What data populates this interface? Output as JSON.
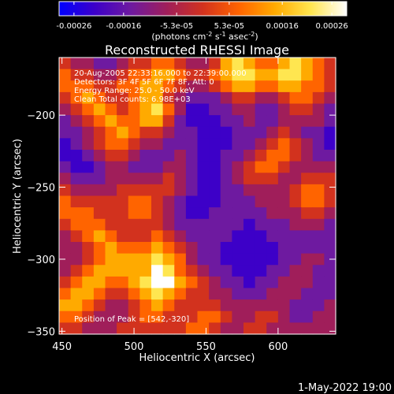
{
  "colorbar": {
    "ticks": [
      {
        "value": -0.00026,
        "label": "-0.00026"
      },
      {
        "value": -0.00016,
        "label": "-0.00016"
      },
      {
        "value": -5.3e-05,
        "label": "-5.3e-05"
      },
      {
        "value": 5.3e-05,
        "label": "5.3e-05"
      },
      {
        "value": 0.00016,
        "label": "0.00016"
      },
      {
        "value": 0.00026,
        "label": "0.00026"
      }
    ],
    "range": [
      -0.00029,
      0.00029
    ],
    "units_prefix": "(photons cm",
    "units_exp1": "-2",
    "units_mid1": " s",
    "units_exp2": "-1",
    "units_mid2": " asec",
    "units_exp3": "-2",
    "units_suffix": ")",
    "colors": [
      "#0000ff",
      "#3d00c8",
      "#6e1aa0",
      "#a01e5a",
      "#d2321e",
      "#ff6400",
      "#ffaa00",
      "#ffe650",
      "#ffffff"
    ]
  },
  "plot": {
    "title": "Reconstructed RHESSI Image",
    "info_lines": [
      "20-Aug-2005 22:33:16.000 to 22:39:00.000",
      "Detectors: 3F 4F 5F 6F 7F 8F, Att: 0",
      "Energy Range: 25.0 - 50.0 keV",
      "Clean     Total counts: 6.98E+03"
    ],
    "peak_label": "Position of Peak = [542,-320]",
    "footer_date": "1-May-2022 19:00"
  },
  "chart_data": {
    "type": "heatmap",
    "title": "Reconstructed RHESSI Image",
    "xlabel": "Heliocentric X (arcsec)",
    "ylabel": "Heliocentric Y (arcsec)",
    "xlim": [
      448,
      640
    ],
    "ylim": [
      -352,
      -160
    ],
    "x_ticks": [
      450,
      500,
      550,
      600
    ],
    "y_ticks": [
      -200,
      -250,
      -300,
      -350
    ],
    "peak": [
      542,
      -320
    ],
    "grid_x_start": 448,
    "grid_y_start": -160,
    "cell_size": 8,
    "grid": [
      [
        4,
        3,
        3,
        2,
        2,
        3,
        4,
        4,
        5,
        5,
        4,
        3,
        3,
        4,
        6,
        7,
        6,
        5,
        5,
        6,
        7,
        6,
        5,
        4
      ],
      [
        5,
        4,
        4,
        3,
        3,
        4,
        5,
        5,
        6,
        6,
        5,
        4,
        4,
        5,
        6,
        7,
        7,
        6,
        6,
        7,
        7,
        6,
        5,
        4
      ],
      [
        5,
        5,
        5,
        4,
        4,
        5,
        5,
        6,
        6,
        5,
        4,
        3,
        3,
        4,
        5,
        6,
        6,
        5,
        5,
        6,
        6,
        5,
        5,
        4
      ],
      [
        4,
        5,
        6,
        5,
        4,
        4,
        5,
        6,
        6,
        4,
        3,
        2,
        2,
        2,
        3,
        4,
        4,
        3,
        3,
        4,
        5,
        5,
        4,
        3
      ],
      [
        3,
        4,
        5,
        6,
        5,
        4,
        5,
        6,
        7,
        5,
        3,
        1,
        1,
        2,
        2,
        3,
        3,
        2,
        2,
        3,
        4,
        4,
        3,
        2
      ],
      [
        2,
        3,
        4,
        5,
        6,
        5,
        5,
        6,
        6,
        4,
        2,
        1,
        1,
        1,
        2,
        2,
        3,
        2,
        2,
        3,
        3,
        3,
        3,
        2
      ],
      [
        2,
        2,
        3,
        4,
        5,
        6,
        5,
        4,
        4,
        3,
        2,
        2,
        1,
        1,
        1,
        2,
        2,
        2,
        3,
        4,
        3,
        2,
        2,
        1
      ],
      [
        1,
        2,
        3,
        4,
        5,
        5,
        4,
        3,
        3,
        2,
        2,
        2,
        1,
        1,
        1,
        2,
        2,
        3,
        4,
        5,
        4,
        3,
        2,
        1
      ],
      [
        1,
        1,
        2,
        3,
        4,
        4,
        3,
        2,
        2,
        2,
        3,
        2,
        1,
        1,
        2,
        2,
        3,
        4,
        5,
        5,
        4,
        3,
        2,
        2
      ],
      [
        2,
        1,
        1,
        2,
        3,
        3,
        2,
        2,
        2,
        3,
        3,
        2,
        1,
        1,
        2,
        3,
        4,
        5,
        5,
        4,
        3,
        3,
        3,
        3
      ],
      [
        3,
        2,
        2,
        2,
        3,
        3,
        3,
        3,
        3,
        4,
        3,
        2,
        1,
        1,
        2,
        3,
        4,
        4,
        4,
        3,
        3,
        4,
        4,
        4
      ],
      [
        4,
        3,
        3,
        3,
        3,
        4,
        4,
        4,
        4,
        4,
        3,
        2,
        1,
        1,
        2,
        2,
        3,
        3,
        3,
        3,
        4,
        5,
        5,
        4
      ],
      [
        5,
        4,
        4,
        4,
        4,
        4,
        5,
        5,
        4,
        3,
        2,
        1,
        1,
        1,
        2,
        2,
        2,
        3,
        3,
        3,
        4,
        5,
        5,
        4
      ],
      [
        5,
        5,
        5,
        4,
        4,
        4,
        5,
        5,
        4,
        3,
        2,
        1,
        1,
        2,
        2,
        2,
        2,
        2,
        3,
        3,
        3,
        4,
        4,
        3
      ],
      [
        4,
        5,
        5,
        5,
        4,
        4,
        4,
        4,
        4,
        3,
        2,
        2,
        2,
        2,
        2,
        2,
        1,
        2,
        2,
        2,
        3,
        3,
        3,
        2
      ],
      [
        3,
        4,
        5,
        6,
        5,
        4,
        4,
        4,
        5,
        4,
        3,
        2,
        2,
        2,
        2,
        1,
        1,
        1,
        2,
        2,
        2,
        2,
        2,
        2
      ],
      [
        3,
        3,
        4,
        5,
        6,
        5,
        5,
        5,
        6,
        5,
        4,
        3,
        2,
        2,
        1,
        1,
        1,
        1,
        1,
        2,
        2,
        2,
        2,
        2
      ],
      [
        3,
        3,
        4,
        5,
        6,
        6,
        6,
        6,
        7,
        6,
        5,
        3,
        2,
        2,
        1,
        1,
        1,
        1,
        1,
        2,
        2,
        3,
        3,
        2
      ],
      [
        3,
        4,
        5,
        6,
        6,
        6,
        6,
        6,
        8,
        7,
        5,
        4,
        3,
        2,
        2,
        1,
        1,
        1,
        2,
        2,
        3,
        3,
        2,
        2
      ],
      [
        4,
        5,
        6,
        6,
        5,
        5,
        6,
        7,
        8,
        8,
        6,
        5,
        4,
        3,
        2,
        2,
        1,
        2,
        2,
        3,
        3,
        3,
        2,
        2
      ],
      [
        5,
        6,
        6,
        5,
        4,
        4,
        5,
        6,
        7,
        6,
        5,
        4,
        4,
        3,
        3,
        2,
        2,
        2,
        3,
        3,
        3,
        2,
        2,
        2
      ],
      [
        6,
        6,
        5,
        4,
        3,
        3,
        4,
        5,
        6,
        5,
        4,
        4,
        4,
        4,
        3,
        3,
        3,
        3,
        3,
        3,
        2,
        2,
        2,
        3
      ],
      [
        5,
        5,
        4,
        3,
        3,
        3,
        4,
        5,
        5,
        4,
        4,
        4,
        5,
        5,
        4,
        3,
        3,
        4,
        4,
        3,
        2,
        2,
        3,
        3
      ],
      [
        4,
        4,
        3,
        3,
        3,
        4,
        4,
        4,
        4,
        4,
        4,
        5,
        5,
        4,
        3,
        3,
        4,
        4,
        3,
        3,
        3,
        3,
        3,
        3
      ]
    ]
  }
}
